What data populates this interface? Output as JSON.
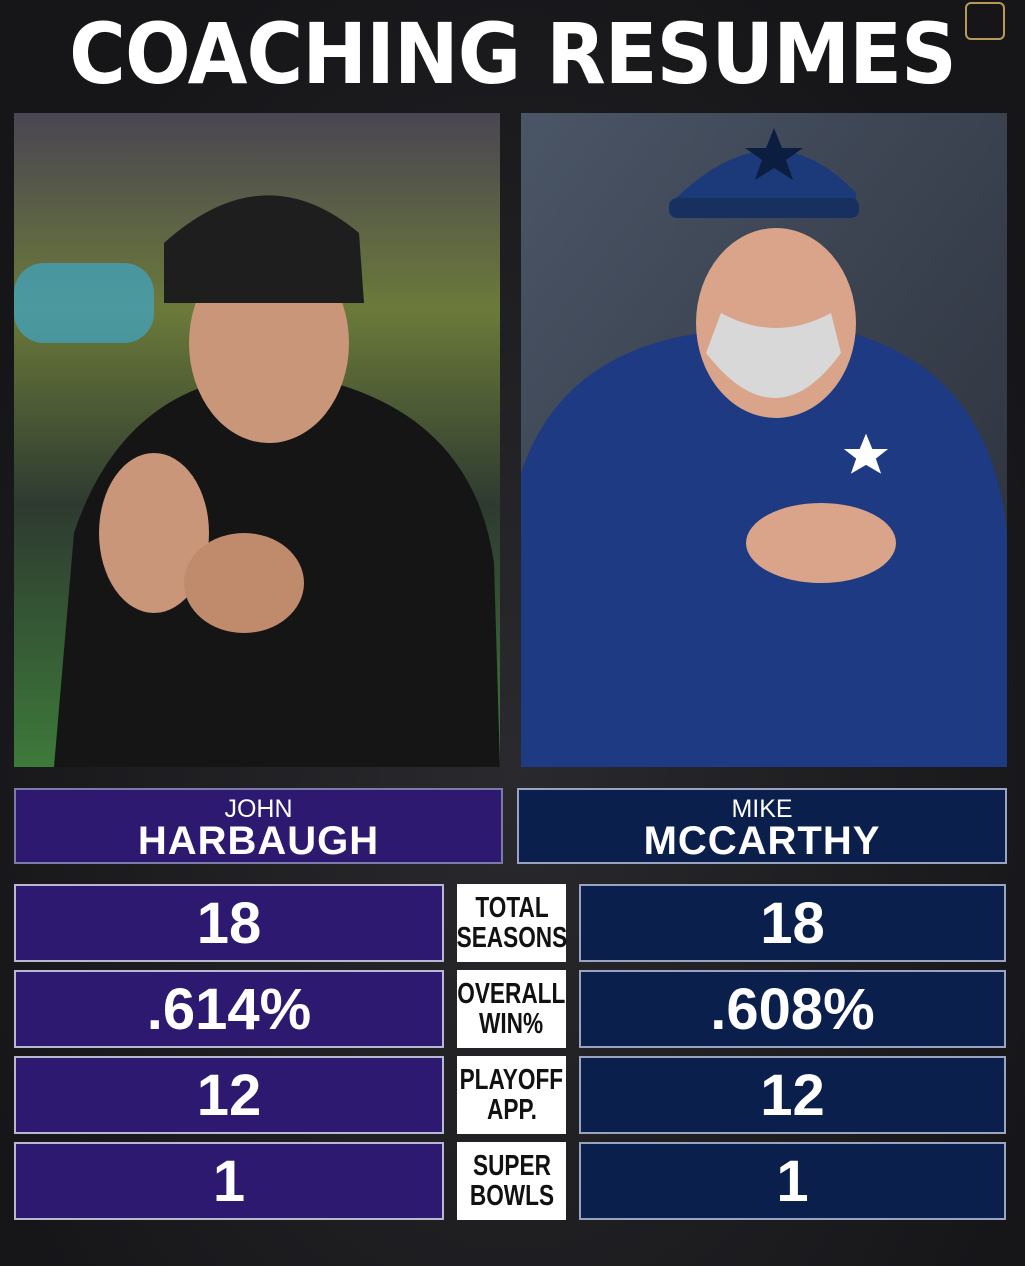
{
  "header": {
    "title": "COACHING RESUMES"
  },
  "coaches": [
    {
      "first": "JOHN",
      "last": "HARBAUGH"
    },
    {
      "first": "MIKE",
      "last": "MCCARTHY"
    }
  ],
  "stats": [
    {
      "label": [
        "TOTAL",
        "SEASONS"
      ],
      "values": [
        18,
        18
      ]
    },
    {
      "label": [
        "OVERALL",
        "WIN%"
      ],
      "values": [
        ".614%",
        ".608%"
      ]
    },
    {
      "label": [
        "PLAYOFF",
        "APP."
      ],
      "values": [
        12,
        12
      ]
    },
    {
      "label": [
        "SUPER",
        "BOWLS"
      ],
      "values": [
        1,
        1
      ]
    }
  ]
}
